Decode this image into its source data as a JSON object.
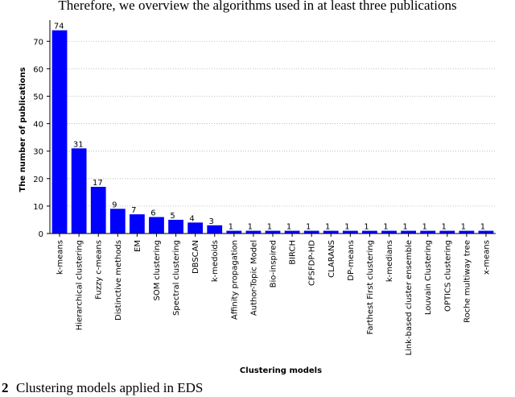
{
  "header_text": "Therefore, we overview the algorithms used in at least three publications",
  "caption_number": "2",
  "caption_text": "Clustering models applied in EDS",
  "chart_data": {
    "type": "bar",
    "ylabel": "The number of publications",
    "xlabel": "Clustering models",
    "categories": [
      "k-means",
      "Hierarchical clustering",
      "Fuzzy c-means",
      "Distinctive methods",
      "EM",
      "SOM clustering",
      "Spectral clustering",
      "DBSCAN",
      "k-medoids",
      "Affinity propagation",
      "Author-Topic Model",
      "Bio-inspired",
      "BIRCH",
      "CFSFDP-HD",
      "CLARANS",
      "DP-means",
      "Farthest First clustering",
      "k-medians",
      "Link-based cluster ensemble",
      "Louvain Clustering",
      "OPTICS clustering",
      "Roche multiway tree",
      "x-means"
    ],
    "values": [
      74,
      31,
      17,
      9,
      7,
      6,
      5,
      4,
      3,
      1,
      1,
      1,
      1,
      1,
      1,
      1,
      1,
      1,
      1,
      1,
      1,
      1,
      1
    ],
    "color": "#0000ff",
    "ylim": [
      0,
      77.7
    ],
    "yticks": [
      0,
      10,
      20,
      30,
      40,
      50,
      60,
      70
    ],
    "grid": true
  }
}
